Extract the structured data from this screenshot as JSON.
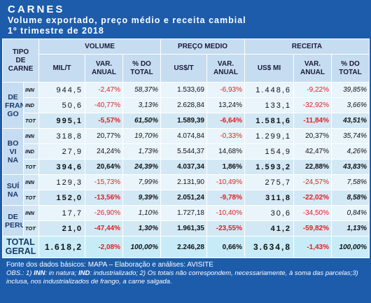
{
  "header": {
    "title": "CARNES",
    "subtitle": "Volume exportado, preço médio e receita cambial",
    "period": "1º trimestre de 2018"
  },
  "table": {
    "corner": [
      "TIPO",
      "DE",
      "CARNE"
    ],
    "groups": [
      "VOLUME",
      "PREÇO MEDIO",
      "RECEITA"
    ],
    "columns": [
      "MIL/T",
      "VAR. ANUAL",
      "% DO TOTAL",
      "US$/T",
      "VAR. ANUAL",
      "US$ MI",
      "VAR. ANUAL",
      "% DO TOTAL"
    ],
    "sections": [
      {
        "label": [
          "DE",
          "FRAN",
          "GO"
        ],
        "rows": [
          {
            "sub": "INN",
            "cells": [
              "944,5",
              "-2,47%",
              "58,37%",
              "1.533,69",
              "-6,93%",
              "1.448,6",
              "-9,22%",
              "39,85%"
            ]
          },
          {
            "sub": "IND",
            "cells": [
              "50,6",
              "-40,77%",
              "3,13%",
              "2.628,84",
              "13,24%",
              "133,1",
              "-32,92%",
              "3,66%"
            ]
          },
          {
            "sub": "TOT",
            "cells": [
              "995,1",
              "-5,57%",
              "61,50%",
              "1.589,39",
              "-6,64%",
              "1.581,6",
              "-11,84%",
              "43,51%"
            ]
          }
        ]
      },
      {
        "label": [
          "BO",
          "VI",
          "NA"
        ],
        "rows": [
          {
            "sub": "INN",
            "cells": [
              "318,8",
              "20,77%",
              "19,70%",
              "4.074,84",
              "-0,33%",
              "1.299,1",
              "20,37%",
              "35,74%"
            ]
          },
          {
            "sub": "IND",
            "cells": [
              "27,9",
              "24,24%",
              "1,73%",
              "5.544,37",
              "14,68%",
              "154,9",
              "42,47%",
              "4,26%"
            ]
          },
          {
            "sub": "TOT",
            "cells": [
              "394,6",
              "20,64%",
              "24,39%",
              "4.037,34",
              "1,86%",
              "1.593,2",
              "22,88%",
              "43,83%"
            ]
          }
        ]
      },
      {
        "label": [
          "SUÍ",
          "NA"
        ],
        "rows": [
          {
            "sub": "INN",
            "cells": [
              "129,3",
              "-15,73%",
              "7,99%",
              "2.131,90",
              "-10,49%",
              "275,7",
              "-24,57%",
              "7,58%"
            ]
          },
          {
            "sub": "TOT",
            "cells": [
              "152,0",
              "-13,56%",
              "9,39%",
              "2.051,24",
              "-9,78%",
              "311,8",
              "-22,02%",
              "8,58%"
            ]
          }
        ]
      },
      {
        "label": [
          "DE",
          "PERU"
        ],
        "rows": [
          {
            "sub": "INN",
            "cells": [
              "17,7",
              "-26,90%",
              "1,10%",
              "1.727,18",
              "-10,40%",
              "30,6",
              "-34,50%",
              "0,84%"
            ]
          },
          {
            "sub": "TOT",
            "cells": [
              "21,0",
              "-47,44%",
              "1,30%",
              "1.961,35",
              "-23,55%",
              "41,2",
              "-59,82%",
              "1,13%"
            ]
          }
        ]
      }
    ],
    "total": {
      "label": [
        "TOTAL",
        "GERAL"
      ],
      "cells": [
        "1.618,2",
        "-2,08%",
        "100,00%",
        "2.246,28",
        "0,66%",
        "3.634,8",
        "-1,43%",
        "100,00%"
      ]
    }
  },
  "footer": {
    "source": "Fonte dos dados básicos: MAPA – Elaboração e análises: AVISITE",
    "notes": [
      "OBS.: 1) ",
      "INN",
      ": in natura; ",
      "IND",
      ": industrializado; 2) Os totais não correspondem, necessariamente, à soma das parcelas;3) inclusa, nos industrializados de frango, a carne salgada."
    ]
  }
}
